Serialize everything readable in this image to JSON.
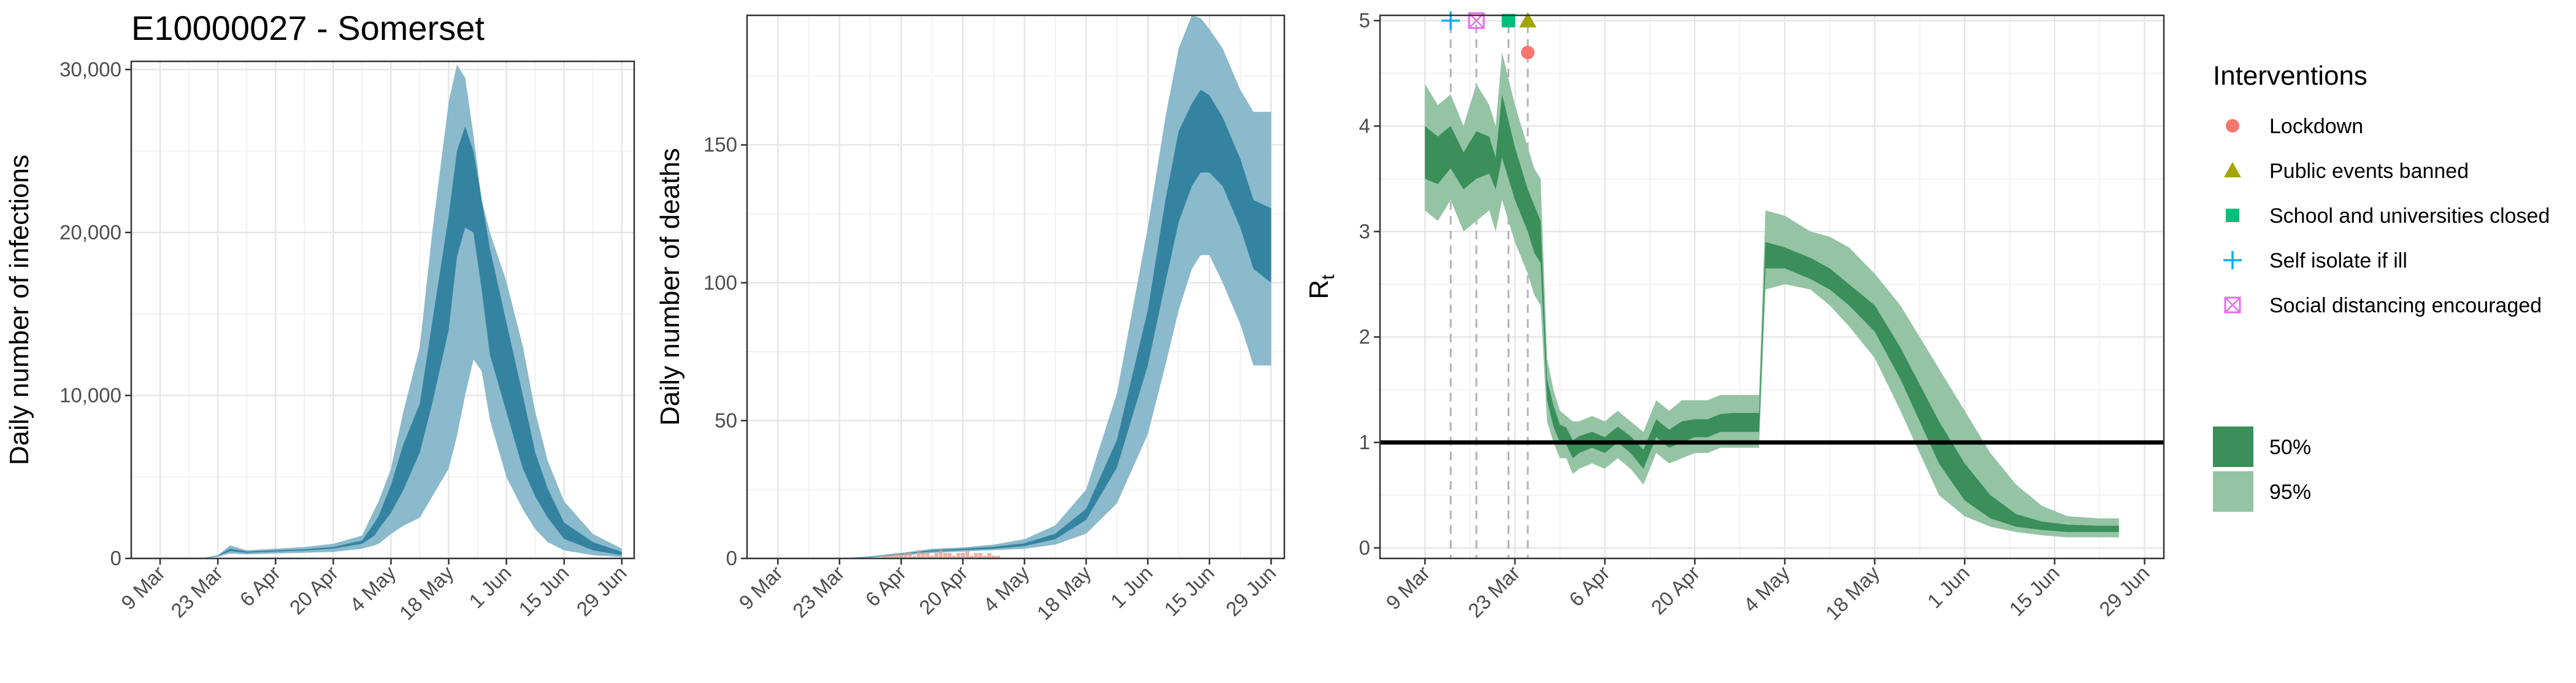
{
  "title": "E10000027 - Somerset",
  "colors": {
    "infections_dark": "#2f7f9e",
    "infections_light": "#84b6c9",
    "rt_dark": "#3a8f5a",
    "rt_light": "#94c4a4",
    "lockdown": "#f8766d",
    "public_events": "#a3a500",
    "schools": "#00bf7d",
    "self_isolate": "#00b0f6",
    "social_distancing": "#e76bf3",
    "observed_deaths": "#e8988e"
  },
  "chart_data": [
    {
      "type": "area",
      "id": "infections",
      "ylabel": "Daily number of infections",
      "xlabel": "",
      "x_range": [
        -7,
        115
      ],
      "ylim": [
        0,
        30500
      ],
      "y_ticks": [
        0,
        10000,
        20000,
        30000
      ],
      "y_tick_labels": [
        "0",
        "10,000",
        "20,000",
        "30,000"
      ],
      "x_ticks": [
        0,
        14,
        28,
        42,
        56,
        70,
        84,
        98,
        112
      ],
      "x_tick_labels": [
        "9 Mar",
        "23 Mar",
        "6 Apr",
        "20 Apr",
        "4 May",
        "18 May",
        "1 Jun",
        "15 Jun",
        "29 Jun"
      ],
      "x": [
        0,
        7,
        10,
        14,
        17,
        21,
        28,
        35,
        42,
        49,
        52,
        53,
        56,
        59,
        63,
        66,
        70,
        72,
        74,
        76,
        78,
        80,
        84,
        88,
        91,
        94,
        98,
        105,
        112
      ],
      "series": [
        {
          "name": "95%",
          "lower": [
            0,
            0,
            0,
            100,
            300,
            250,
            300,
            350,
            400,
            600,
            800,
            900,
            1500,
            2000,
            2500,
            3800,
            5500,
            7500,
            10000,
            12200,
            11500,
            8500,
            5000,
            3000,
            1800,
            1000,
            500,
            200,
            80
          ],
          "upper": [
            0,
            0,
            0,
            200,
            800,
            500,
            600,
            700,
            900,
            1400,
            3000,
            3500,
            5500,
            9000,
            13000,
            20000,
            28000,
            30300,
            29500,
            26000,
            22000,
            20000,
            17000,
            13000,
            9000,
            6000,
            3500,
            1500,
            600
          ]
        },
        {
          "name": "50%",
          "lower": [
            0,
            0,
            0,
            150,
            450,
            350,
            420,
            480,
            600,
            900,
            1400,
            1800,
            2800,
            4200,
            6500,
            9500,
            14000,
            18500,
            20300,
            20000,
            16500,
            12500,
            9000,
            5500,
            3800,
            2500,
            1200,
            500,
            200
          ],
          "upper": [
            0,
            0,
            0,
            180,
            600,
            420,
            500,
            560,
            700,
            1100,
            2200,
            2600,
            4500,
            7000,
            9500,
            14500,
            21000,
            25000,
            26500,
            25000,
            22000,
            19000,
            14500,
            10000,
            6500,
            4300,
            2200,
            1000,
            400
          ]
        }
      ]
    },
    {
      "type": "area",
      "id": "deaths",
      "ylabel": "Daily number of deaths",
      "xlabel": "",
      "x_range": [
        -7,
        115
      ],
      "ylim": [
        0,
        197
      ],
      "y_ticks": [
        0,
        50,
        100,
        150
      ],
      "y_tick_labels": [
        "0",
        "50",
        "100",
        "150"
      ],
      "x_ticks": [
        0,
        14,
        28,
        42,
        56,
        70,
        84,
        98,
        112
      ],
      "x_tick_labels": [
        "9 Mar",
        "23 Mar",
        "6 Apr",
        "20 Apr",
        "4 May",
        "18 May",
        "1 Jun",
        "15 Jun",
        "29 Jun"
      ],
      "x": [
        0,
        7,
        14,
        21,
        28,
        35,
        42,
        49,
        56,
        63,
        70,
        77,
        84,
        88,
        91,
        94,
        96,
        98,
        101,
        105,
        108,
        112
      ],
      "series": [
        {
          "name": "95%",
          "lower": [
            0,
            0,
            0,
            0.3,
            1,
            2,
            2.5,
            3,
            3.5,
            5,
            9,
            20,
            45,
            70,
            90,
            105,
            110,
            110,
            100,
            85,
            70,
            70
          ],
          "upper": [
            0,
            0,
            0,
            0.8,
            2,
            3.5,
            4,
            5,
            7,
            12,
            25,
            60,
            120,
            160,
            185,
            197,
            196,
            192,
            185,
            170,
            162,
            162
          ]
        },
        {
          "name": "50%",
          "lower": [
            0,
            0,
            0,
            0.5,
            1.5,
            2.5,
            3,
            3.5,
            4.5,
            7,
            14,
            33,
            70,
            100,
            122,
            135,
            140,
            140,
            135,
            120,
            105,
            100
          ],
          "upper": [
            0,
            0,
            0,
            0.6,
            1.7,
            3,
            3.5,
            4.2,
            5.5,
            9,
            18,
            43,
            90,
            130,
            155,
            165,
            170,
            168,
            160,
            145,
            130,
            127
          ]
        }
      ],
      "observed_deaths": {
        "x": [
          24,
          25,
          26,
          27,
          28,
          29,
          30,
          31,
          32,
          33,
          34,
          35,
          36,
          37,
          38,
          39,
          40,
          41,
          42,
          43,
          44,
          45,
          46,
          47,
          48,
          49,
          50
        ],
        "values": [
          1,
          1,
          1,
          2,
          1,
          2,
          2,
          1,
          3,
          2,
          2,
          1,
          2,
          3,
          2,
          2,
          1,
          2,
          2,
          3,
          1,
          2,
          2,
          1,
          2,
          1,
          1
        ]
      }
    },
    {
      "type": "area",
      "id": "rt",
      "ylabel": "R",
      "ylabel_sub": "t",
      "xlabel": "",
      "x_range": [
        -7,
        115
      ],
      "ylim": [
        -0.1,
        5.05
      ],
      "y_ticks": [
        0,
        1,
        2,
        3,
        4,
        5
      ],
      "y_tick_labels": [
        "0",
        "1",
        "2",
        "3",
        "4",
        "5"
      ],
      "x_ticks": [
        0,
        14,
        28,
        42,
        56,
        70,
        84,
        98,
        112
      ],
      "x_tick_labels": [
        "9 Mar",
        "23 Mar",
        "6 Apr",
        "20 Apr",
        "4 May",
        "18 May",
        "1 Jun",
        "15 Jun",
        "29 Jun"
      ],
      "x": [
        0,
        2,
        4,
        6,
        8,
        10,
        11,
        12,
        14,
        16,
        17,
        18,
        19,
        20,
        21,
        22,
        23,
        24,
        26,
        28,
        30,
        32,
        34,
        36,
        38,
        40,
        42,
        44,
        46,
        48,
        50,
        52,
        53,
        56,
        60,
        63,
        66,
        70,
        74,
        77,
        80,
        84,
        88,
        92,
        96,
        100,
        105,
        108
      ],
      "series": [
        {
          "name": "95%",
          "lower": [
            3.2,
            3.1,
            3.3,
            3.0,
            3.1,
            3.2,
            3.0,
            3.3,
            2.9,
            2.6,
            2.4,
            2.3,
            1.2,
            1.0,
            0.85,
            0.85,
            0.7,
            0.75,
            0.8,
            0.75,
            0.85,
            0.75,
            0.6,
            0.9,
            0.8,
            0.85,
            0.9,
            0.9,
            0.95,
            0.95,
            0.95,
            0.95,
            2.45,
            2.5,
            2.45,
            2.3,
            2.1,
            1.8,
            1.3,
            0.9,
            0.5,
            0.3,
            0.2,
            0.15,
            0.12,
            0.1,
            0.1,
            0.1
          ],
          "upper": [
            4.4,
            4.2,
            4.3,
            4.0,
            4.4,
            4.2,
            4.0,
            4.7,
            4.2,
            3.8,
            3.6,
            3.5,
            1.8,
            1.5,
            1.3,
            1.25,
            1.2,
            1.2,
            1.25,
            1.2,
            1.3,
            1.2,
            1.1,
            1.4,
            1.3,
            1.4,
            1.4,
            1.4,
            1.45,
            1.45,
            1.45,
            1.45,
            3.2,
            3.15,
            3.0,
            2.95,
            2.85,
            2.6,
            2.3,
            2.0,
            1.7,
            1.3,
            0.9,
            0.6,
            0.4,
            0.3,
            0.28,
            0.28
          ]
        },
        {
          "name": "50%",
          "lower": [
            3.5,
            3.45,
            3.6,
            3.4,
            3.5,
            3.55,
            3.4,
            3.7,
            3.3,
            3.0,
            2.8,
            2.7,
            1.4,
            1.15,
            1.0,
            0.98,
            0.85,
            0.9,
            0.95,
            0.9,
            1.0,
            0.9,
            0.75,
            1.05,
            0.95,
            1.0,
            1.05,
            1.05,
            1.1,
            1.1,
            1.1,
            1.1,
            2.65,
            2.65,
            2.55,
            2.45,
            2.3,
            2.05,
            1.6,
            1.2,
            0.8,
            0.45,
            0.28,
            0.2,
            0.17,
            0.15,
            0.15,
            0.15
          ],
          "upper": [
            4.0,
            3.9,
            4.0,
            3.75,
            3.95,
            3.9,
            3.7,
            4.3,
            3.8,
            3.4,
            3.25,
            3.1,
            1.6,
            1.35,
            1.17,
            1.14,
            1.02,
            1.06,
            1.1,
            1.05,
            1.15,
            1.06,
            0.93,
            1.22,
            1.12,
            1.2,
            1.22,
            1.22,
            1.27,
            1.28,
            1.28,
            1.28,
            2.9,
            2.85,
            2.75,
            2.65,
            2.5,
            2.3,
            1.9,
            1.55,
            1.2,
            0.8,
            0.5,
            0.32,
            0.25,
            0.22,
            0.21,
            0.21
          ]
        }
      ],
      "reference_line": {
        "y": 1
      },
      "interventions": [
        {
          "key": "self_isolate",
          "name": "Self isolate if ill",
          "x": 4,
          "marker": "plus"
        },
        {
          "key": "social_distancing",
          "name": "Social distancing encouraged",
          "x": 8,
          "marker": "boxx"
        },
        {
          "key": "schools",
          "name": "School and universities closed",
          "x": 13,
          "marker": "square"
        },
        {
          "key": "public_events",
          "name": "Public events banned",
          "x": 16,
          "marker": "triangle"
        },
        {
          "key": "lockdown",
          "name": "Lockdown",
          "x": 16,
          "marker": "circle"
        }
      ]
    }
  ],
  "legend": {
    "interventions_title": "Interventions",
    "items": [
      {
        "label": "Lockdown",
        "marker": "circle",
        "color_key": "lockdown"
      },
      {
        "label": "Public events banned",
        "marker": "triangle",
        "color_key": "public_events"
      },
      {
        "label": "School and universities closed",
        "marker": "square",
        "color_key": "schools"
      },
      {
        "label": "Self isolate if ill",
        "marker": "plus",
        "color_key": "self_isolate"
      },
      {
        "label": "Social distancing encouraged",
        "marker": "boxx",
        "color_key": "social_distancing"
      }
    ],
    "bands": [
      {
        "label": "50%",
        "color_key": "rt_dark"
      },
      {
        "label": "95%",
        "color_key": "rt_light"
      }
    ]
  }
}
